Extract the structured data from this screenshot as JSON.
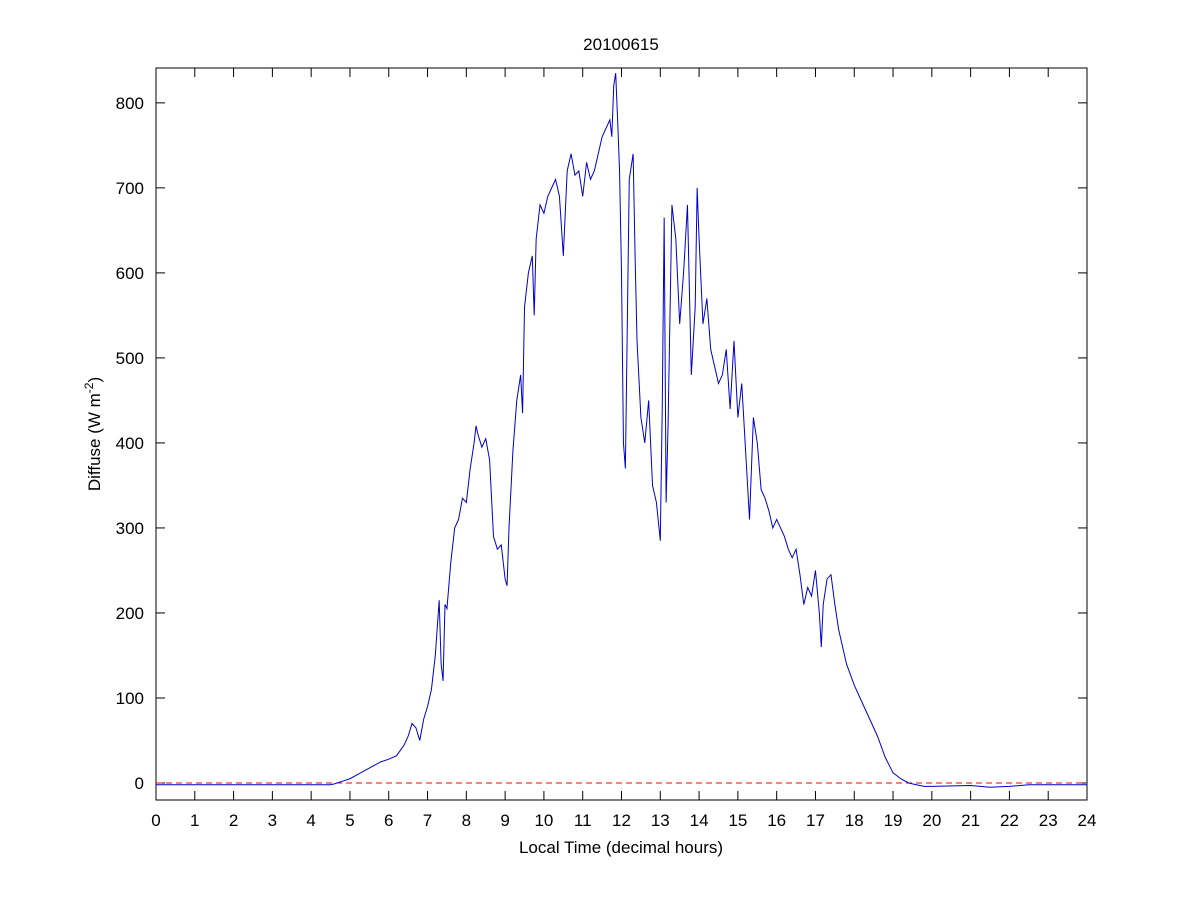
{
  "chart_data": {
    "type": "line",
    "title": "20100615",
    "xlabel": "Local Time (decimal hours)",
    "ylabel": {
      "text": "Diffuse (W m",
      "sup": "-2",
      "tail": ")"
    },
    "xlim": [
      0,
      24
    ],
    "ylim": [
      -20,
      841
    ],
    "xticks": [
      0,
      1,
      2,
      3,
      4,
      5,
      6,
      7,
      8,
      9,
      10,
      11,
      12,
      13,
      14,
      15,
      16,
      17,
      18,
      19,
      20,
      21,
      22,
      23,
      24
    ],
    "yticks": [
      0,
      100,
      200,
      300,
      400,
      500,
      600,
      700,
      800
    ],
    "color": "#0000cc",
    "reference_line": {
      "value": 0,
      "color": "#ff0000",
      "dash": true
    },
    "x": [
      0,
      1,
      2,
      3,
      4,
      4.5,
      4.6,
      4.8,
      5.0,
      5.2,
      5.4,
      5.6,
      5.8,
      6.0,
      6.2,
      6.4,
      6.5,
      6.6,
      6.7,
      6.8,
      6.9,
      7.0,
      7.1,
      7.2,
      7.3,
      7.35,
      7.4,
      7.45,
      7.5,
      7.6,
      7.7,
      7.8,
      7.9,
      8.0,
      8.1,
      8.2,
      8.25,
      8.3,
      8.4,
      8.5,
      8.6,
      8.7,
      8.8,
      8.9,
      9.0,
      9.05,
      9.1,
      9.2,
      9.3,
      9.4,
      9.45,
      9.5,
      9.6,
      9.7,
      9.75,
      9.8,
      9.9,
      10.0,
      10.1,
      10.2,
      10.3,
      10.4,
      10.5,
      10.6,
      10.7,
      10.8,
      10.9,
      11.0,
      11.1,
      11.2,
      11.3,
      11.4,
      11.5,
      11.6,
      11.7,
      11.75,
      11.8,
      11.85,
      11.9,
      11.95,
      12.0,
      12.05,
      12.1,
      12.2,
      12.3,
      12.35,
      12.4,
      12.5,
      12.6,
      12.7,
      12.8,
      12.9,
      13.0,
      13.05,
      13.1,
      13.15,
      13.2,
      13.3,
      13.4,
      13.5,
      13.6,
      13.7,
      13.8,
      13.9,
      13.95,
      14.0,
      14.1,
      14.2,
      14.3,
      14.4,
      14.5,
      14.6,
      14.7,
      14.8,
      14.9,
      15.0,
      15.1,
      15.2,
      15.3,
      15.4,
      15.5,
      15.6,
      15.7,
      15.8,
      15.9,
      16.0,
      16.1,
      16.2,
      16.3,
      16.4,
      16.5,
      16.6,
      16.7,
      16.8,
      16.9,
      17.0,
      17.1,
      17.15,
      17.2,
      17.3,
      17.4,
      17.5,
      17.6,
      17.8,
      18.0,
      18.2,
      18.4,
      18.6,
      18.8,
      19.0,
      19.2,
      19.4,
      19.6,
      19.8,
      20.0,
      21.0,
      21.5,
      22.0,
      22.5,
      23.0,
      24.0
    ],
    "values": [
      -2,
      -2,
      -2,
      -2,
      -2,
      -2,
      -1,
      2,
      5,
      10,
      15,
      20,
      25,
      28,
      32,
      45,
      55,
      70,
      65,
      50,
      75,
      90,
      110,
      150,
      215,
      140,
      120,
      210,
      205,
      260,
      300,
      310,
      335,
      330,
      370,
      400,
      420,
      410,
      395,
      405,
      380,
      290,
      275,
      280,
      240,
      232,
      300,
      390,
      450,
      480,
      435,
      560,
      600,
      620,
      550,
      640,
      680,
      670,
      690,
      700,
      710,
      690,
      620,
      720,
      740,
      715,
      720,
      690,
      730,
      710,
      720,
      740,
      760,
      770,
      780,
      760,
      820,
      835,
      780,
      720,
      600,
      400,
      370,
      710,
      740,
      620,
      520,
      430,
      400,
      450,
      350,
      330,
      285,
      440,
      665,
      330,
      420,
      680,
      640,
      540,
      600,
      680,
      480,
      560,
      700,
      640,
      540,
      570,
      510,
      490,
      470,
      480,
      510,
      440,
      520,
      430,
      470,
      390,
      310,
      430,
      400,
      345,
      335,
      320,
      300,
      310,
      300,
      290,
      275,
      265,
      275,
      245,
      210,
      230,
      220,
      250,
      200,
      160,
      210,
      240,
      245,
      210,
      180,
      140,
      115,
      95,
      75,
      55,
      30,
      12,
      5,
      0,
      -2,
      -4,
      -4,
      -3,
      -5,
      -4,
      -2,
      -2,
      -2
    ]
  }
}
